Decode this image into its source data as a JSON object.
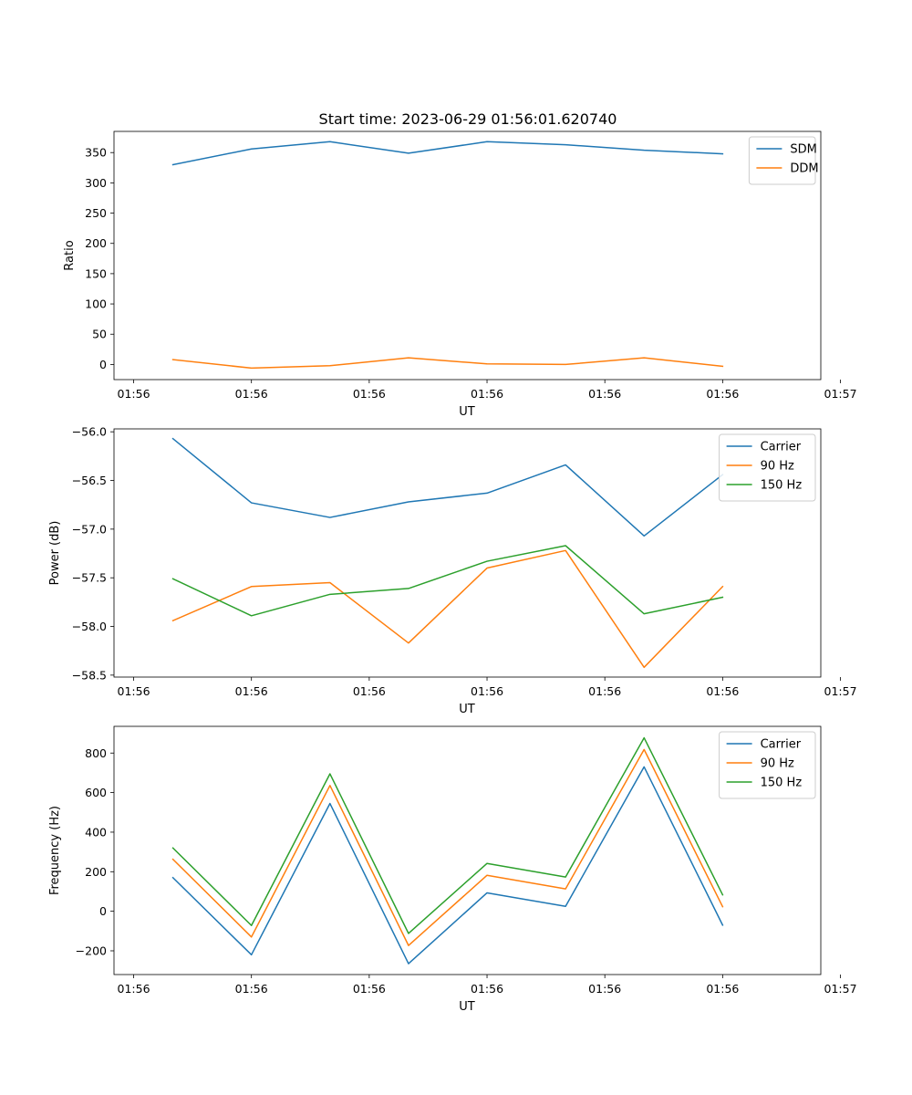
{
  "figure_title": "Start time: 2023-06-29 01:56:01.620740",
  "colors": {
    "blue": "#1f77b4",
    "orange": "#ff7f0e",
    "green": "#2ca02c"
  },
  "chart_data": [
    {
      "type": "line",
      "title": "Start time: 2023-06-29 01:56:01.620740",
      "xlabel": "UT",
      "ylabel": "Ratio",
      "x": [
        1,
        2,
        3,
        4,
        5,
        6,
        7,
        8
      ],
      "xlim": [
        0.25,
        9.25
      ],
      "x_ticks": [
        0.5,
        2,
        3.5,
        5,
        6.5,
        8,
        9.5
      ],
      "x_tick_labels": [
        "01:56",
        "01:56",
        "01:56",
        "01:56",
        "01:56",
        "01:56",
        "01:57"
      ],
      "ylim": [
        -25,
        385
      ],
      "y_ticks": [
        0,
        50,
        100,
        150,
        200,
        250,
        300,
        350
      ],
      "y_tick_labels": [
        "0",
        "50",
        "100",
        "150",
        "200",
        "250",
        "300",
        "350"
      ],
      "legend": "top-right",
      "grid": false,
      "series": [
        {
          "name": "SDM",
          "color": "#1f77b4",
          "values": [
            330,
            356,
            368,
            349,
            368,
            363,
            354,
            348
          ]
        },
        {
          "name": "DDM",
          "color": "#ff7f0e",
          "values": [
            8,
            -6,
            -2,
            11,
            1,
            0,
            11,
            -3
          ]
        }
      ]
    },
    {
      "type": "line",
      "title": "",
      "xlabel": "UT",
      "ylabel": "Power (dB)",
      "x": [
        1,
        2,
        3,
        4,
        5,
        6,
        7,
        8
      ],
      "xlim": [
        0.25,
        9.25
      ],
      "x_ticks": [
        0.5,
        2,
        3.5,
        5,
        6.5,
        8,
        9.5
      ],
      "x_tick_labels": [
        "01:56",
        "01:56",
        "01:56",
        "01:56",
        "01:56",
        "01:56",
        "01:57"
      ],
      "ylim": [
        -58.52,
        -55.97
      ],
      "y_ticks": [
        -58.5,
        -58.0,
        -57.5,
        -57.0,
        -56.5,
        -56.0
      ],
      "y_tick_labels": [
        "−58.5",
        "−58.0",
        "−57.5",
        "−57.0",
        "−56.5",
        "−56.0"
      ],
      "legend": "top-right",
      "grid": false,
      "series": [
        {
          "name": "Carrier",
          "color": "#1f77b4",
          "values": [
            -56.07,
            -56.73,
            -56.88,
            -56.72,
            -56.63,
            -56.34,
            -57.07,
            -56.44
          ]
        },
        {
          "name": "90 Hz",
          "color": "#ff7f0e",
          "values": [
            -57.94,
            -57.59,
            -57.55,
            -58.17,
            -57.4,
            -57.22,
            -58.42,
            -57.59
          ]
        },
        {
          "name": "150 Hz",
          "color": "#2ca02c",
          "values": [
            -57.51,
            -57.89,
            -57.67,
            -57.61,
            -57.33,
            -57.17,
            -57.87,
            -57.7
          ]
        }
      ]
    },
    {
      "type": "line",
      "title": "",
      "xlabel": "UT",
      "ylabel": "Frequency (Hz)",
      "x": [
        1,
        2,
        3,
        4,
        5,
        6,
        7,
        8
      ],
      "xlim": [
        0.25,
        9.25
      ],
      "x_ticks": [
        0.5,
        2,
        3.5,
        5,
        6.5,
        8,
        9.5
      ],
      "x_tick_labels": [
        "01:56",
        "01:56",
        "01:56",
        "01:56",
        "01:56",
        "01:56",
        "01:57"
      ],
      "ylim": [
        -320,
        935
      ],
      "y_ticks": [
        -200,
        0,
        200,
        400,
        600,
        800
      ],
      "y_tick_labels": [
        "−200",
        "0",
        "200",
        "400",
        "600",
        "800"
      ],
      "legend": "top-right",
      "grid": false,
      "series": [
        {
          "name": "Carrier",
          "color": "#1f77b4",
          "values": [
            170,
            -220,
            545,
            -265,
            93,
            25,
            730,
            -70
          ]
        },
        {
          "name": "90 Hz",
          "color": "#ff7f0e",
          "values": [
            263,
            -130,
            636,
            -173,
            182,
            113,
            818,
            23
          ]
        },
        {
          "name": "150 Hz",
          "color": "#2ca02c",
          "values": [
            320,
            -72,
            695,
            -112,
            242,
            173,
            877,
            83
          ]
        }
      ]
    }
  ]
}
